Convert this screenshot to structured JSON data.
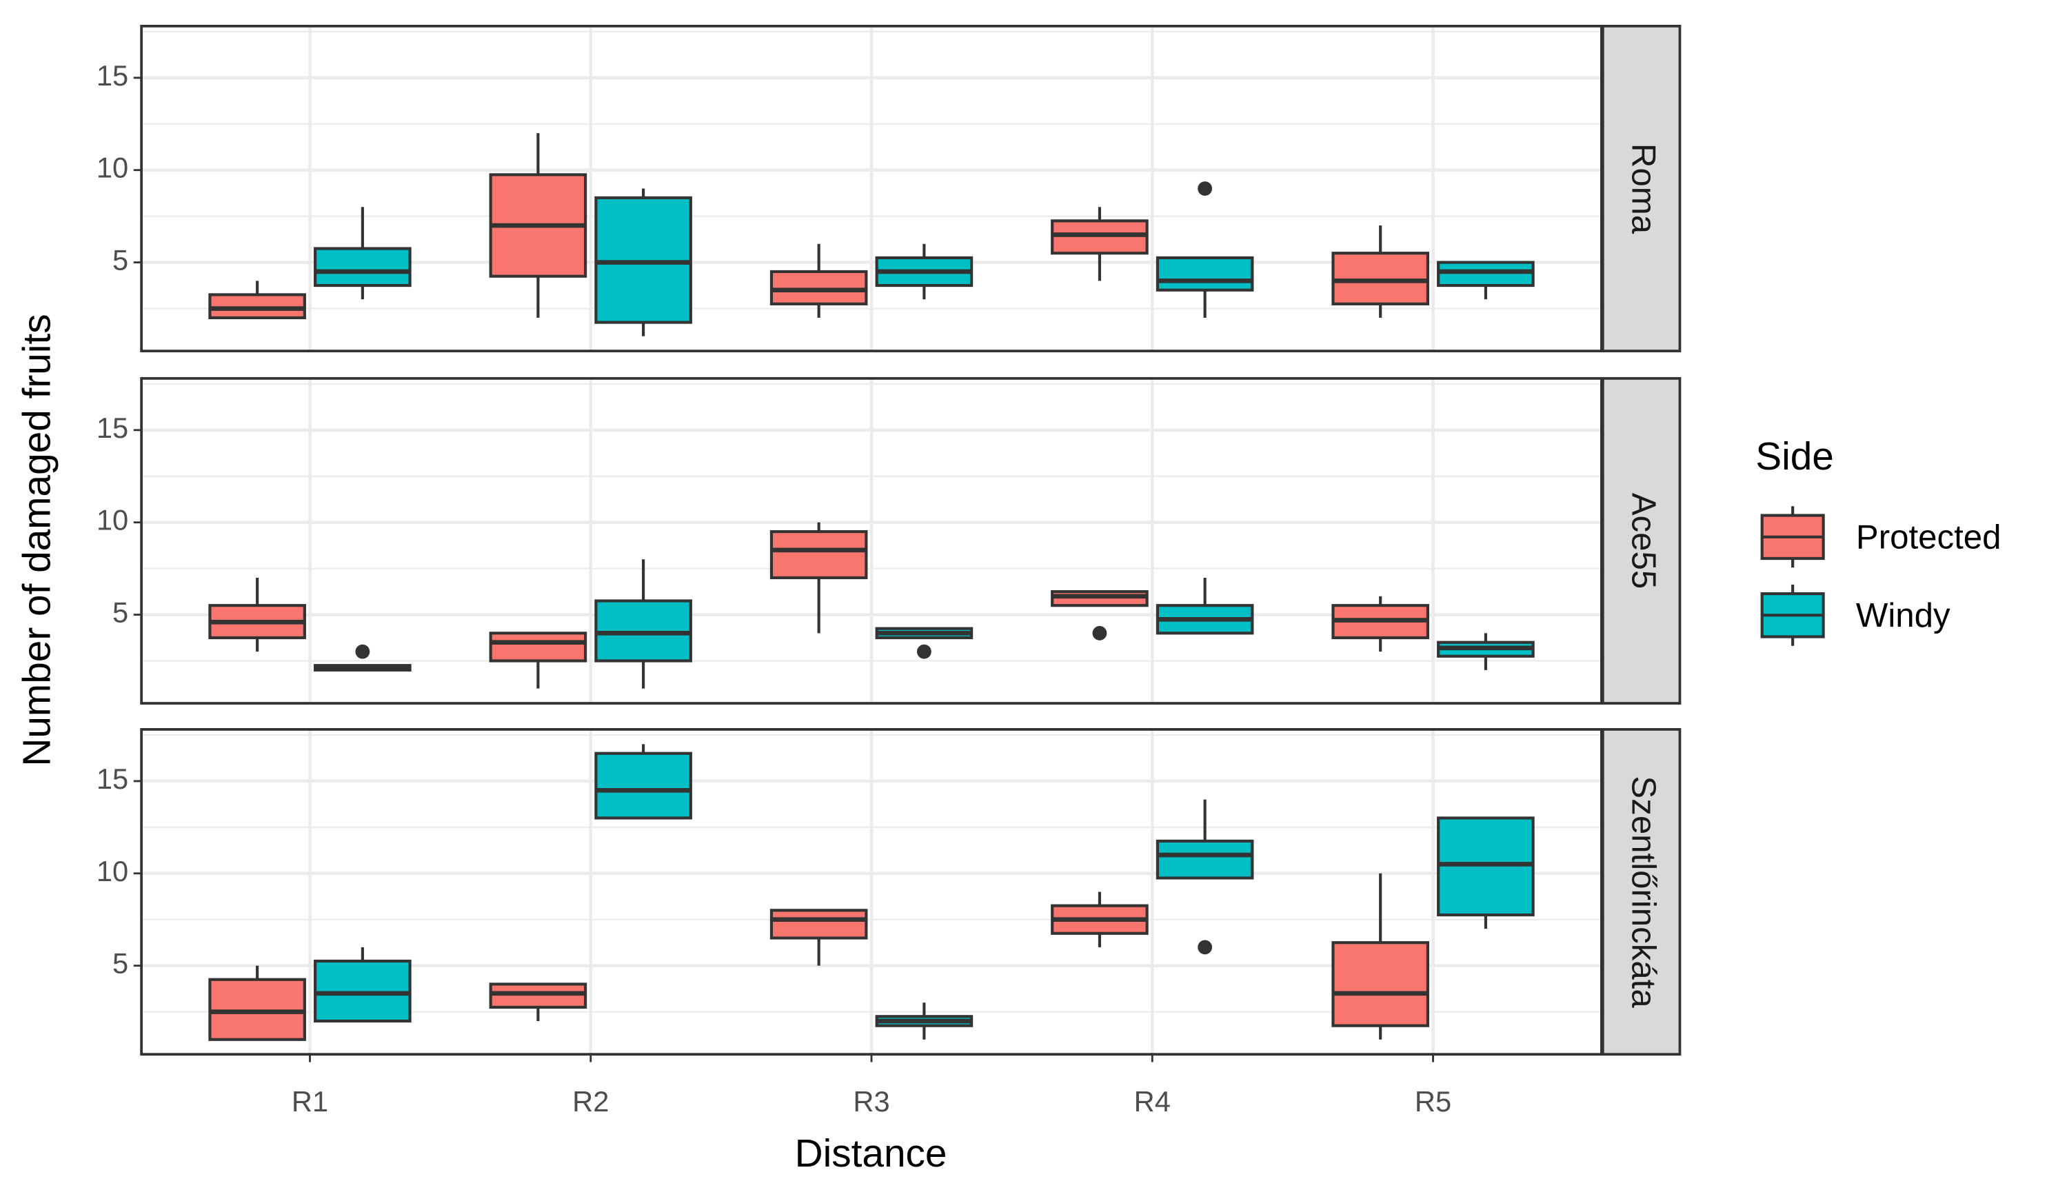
{
  "chart_data": {
    "type": "box",
    "xlabel": "Distance",
    "ylabel": "Number of damaged fruits",
    "legend_title": "Side",
    "categories": [
      "R1",
      "R2",
      "R3",
      "R4",
      "R5"
    ],
    "facets": [
      "Roma",
      "Ace55",
      "Szentlőrinckáta"
    ],
    "ylim": [
      0.2,
      17.8
    ],
    "yticks": [
      5,
      10,
      15
    ],
    "yminor": [
      2.5,
      7.5,
      12.5,
      17.5
    ],
    "grid": true,
    "legend": "right",
    "series": [
      {
        "name": "Protected",
        "color": "#F8766D",
        "values": [
          [
            {
              "min": 2,
              "q1": 2,
              "median": 2.5,
              "q3": 3.25,
              "max": 4
            },
            {
              "min": 2,
              "q1": 4.25,
              "median": 7,
              "q3": 9.75,
              "max": 12
            },
            {
              "min": 2,
              "q1": 2.75,
              "median": 3.5,
              "q3": 4.5,
              "max": 6
            },
            {
              "min": 4,
              "q1": 5.5,
              "median": 6.5,
              "q3": 7.25,
              "max": 8
            },
            {
              "min": 2,
              "q1": 2.75,
              "median": 4,
              "q3": 5.5,
              "max": 7
            }
          ],
          [
            {
              "min": 3,
              "q1": 3.75,
              "median": 4.6,
              "q3": 5.5,
              "max": 7
            },
            {
              "min": 1,
              "q1": 2.5,
              "median": 3.5,
              "q3": 4,
              "max": 4
            },
            {
              "min": 4,
              "q1": 7,
              "median": 8.5,
              "q3": 9.5,
              "max": 10
            },
            {
              "min": 5.5,
              "q1": 5.5,
              "median": 6,
              "q3": 6.25,
              "max": 6.25,
              "outliers": [
                4
              ]
            },
            {
              "min": 3,
              "q1": 3.75,
              "median": 4.7,
              "q3": 5.5,
              "max": 6
            }
          ],
          [
            {
              "min": 1,
              "q1": 1,
              "median": 2.5,
              "q3": 4.25,
              "max": 5
            },
            {
              "min": 2,
              "q1": 2.75,
              "median": 3.5,
              "q3": 4,
              "max": 4
            },
            {
              "min": 5,
              "q1": 6.5,
              "median": 7.5,
              "q3": 8,
              "max": 8
            },
            {
              "min": 6,
              "q1": 6.75,
              "median": 7.5,
              "q3": 8.25,
              "max": 9
            },
            {
              "min": 1,
              "q1": 1.75,
              "median": 3.5,
              "q3": 6.25,
              "max": 10
            }
          ]
        ]
      },
      {
        "name": "Windy",
        "color": "#00BFC4",
        "values": [
          [
            {
              "min": 3,
              "q1": 3.75,
              "median": 4.5,
              "q3": 5.75,
              "max": 8
            },
            {
              "min": 1,
              "q1": 1.75,
              "median": 5,
              "q3": 8.5,
              "max": 9
            },
            {
              "min": 3,
              "q1": 3.75,
              "median": 4.5,
              "q3": 5.25,
              "max": 6
            },
            {
              "min": 2,
              "q1": 3.5,
              "median": 4,
              "q3": 5.25,
              "max": 5.25,
              "outliers": [
                9
              ]
            },
            {
              "min": 3,
              "q1": 3.75,
              "median": 4.5,
              "q3": 5,
              "max": 5
            }
          ],
          [
            {
              "min": 2,
              "q1": 2,
              "median": 2.1,
              "q3": 2.25,
              "max": 2.25,
              "outliers": [
                3
              ]
            },
            {
              "min": 1,
              "q1": 2.5,
              "median": 4,
              "q3": 5.75,
              "max": 8
            },
            {
              "min": 3.75,
              "q1": 3.75,
              "median": 4,
              "q3": 4.25,
              "max": 4.25,
              "outliers": [
                3
              ]
            },
            {
              "min": 4,
              "q1": 4,
              "median": 4.75,
              "q3": 5.5,
              "max": 7
            },
            {
              "min": 2,
              "q1": 2.75,
              "median": 3.2,
              "q3": 3.5,
              "max": 4
            }
          ],
          [
            {
              "min": 2,
              "q1": 2,
              "median": 3.5,
              "q3": 5.25,
              "max": 6
            },
            {
              "min": 13,
              "q1": 13,
              "median": 14.5,
              "q3": 16.5,
              "max": 17
            },
            {
              "min": 1,
              "q1": 1.75,
              "median": 2,
              "q3": 2.25,
              "max": 3
            },
            {
              "min": 9.75,
              "q1": 9.75,
              "median": 11,
              "q3": 11.75,
              "max": 14,
              "outliers": [
                6
              ]
            },
            {
              "min": 7,
              "q1": 7.75,
              "median": 10.5,
              "q3": 13,
              "max": 13
            }
          ]
        ]
      }
    ]
  }
}
